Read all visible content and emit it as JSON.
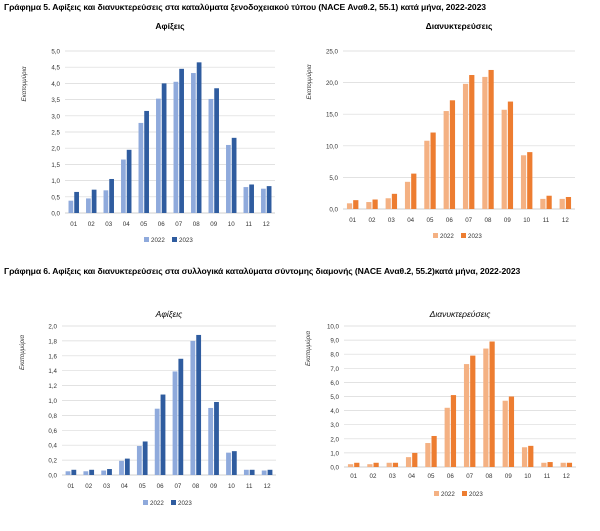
{
  "figures": [
    {
      "title": "Γράφημα 5. Αφίξεις και διανυκτερεύσεις στα καταλύματα ξενοδοχειακού τύπου (NACE Αναθ.2, 55.1) κατά μήνα, 2022-2023"
    },
    {
      "title": "Γράφημα 6. Αφίξεις και διανυκτερεύσεις στα συλλογικά καταλύματα σύντομης διαμονής (NACE Αναθ.2, 55.2)κατά μήνα, 2022-2023"
    }
  ],
  "chart_data": [
    {
      "type": "bar",
      "title": "Αφίξεις",
      "ylabel": "Εκατομμύρια",
      "categories": [
        "01",
        "02",
        "03",
        "04",
        "05",
        "06",
        "07",
        "08",
        "09",
        "10",
        "11",
        "12"
      ],
      "ylim": [
        0,
        5
      ],
      "ytick_step": 0.5,
      "ytick_decimals": 1,
      "grid": true,
      "legend": "bottom",
      "series": [
        {
          "name": "2022",
          "color": "#8faadc",
          "values": [
            0.38,
            0.45,
            0.7,
            1.65,
            2.78,
            3.53,
            4.05,
            4.32,
            3.52,
            2.1,
            0.8,
            0.75
          ]
        },
        {
          "name": "2023",
          "color": "#2f5c9f",
          "values": [
            0.65,
            0.72,
            1.05,
            1.95,
            3.15,
            4.0,
            4.45,
            4.65,
            3.85,
            2.32,
            0.88,
            0.83
          ]
        }
      ]
    },
    {
      "type": "bar",
      "title": "Διανυκτερεύσεις",
      "ylabel": "Εκατομμύρια",
      "categories": [
        "01",
        "02",
        "03",
        "04",
        "05",
        "06",
        "07",
        "08",
        "09",
        "10",
        "11",
        "12"
      ],
      "ylim": [
        0,
        25
      ],
      "ytick_step": 5,
      "ytick_decimals": 1,
      "grid": true,
      "legend": "bottom",
      "series": [
        {
          "name": "2022",
          "color": "#f4b183",
          "values": [
            0.9,
            1.1,
            1.7,
            4.3,
            10.8,
            15.5,
            19.8,
            20.9,
            15.7,
            8.5,
            1.6,
            1.6
          ]
        },
        {
          "name": "2023",
          "color": "#ed7d31",
          "values": [
            1.4,
            1.5,
            2.4,
            5.6,
            12.1,
            17.2,
            21.2,
            22.0,
            17.0,
            9.0,
            2.1,
            1.9
          ]
        }
      ]
    },
    {
      "type": "bar",
      "title": "Αφίξεις",
      "ylabel": "Εκατομμύρια",
      "categories": [
        "01",
        "02",
        "03",
        "04",
        "05",
        "06",
        "07",
        "08",
        "09",
        "10",
        "11",
        "12"
      ],
      "ylim": [
        0,
        2
      ],
      "ytick_step": 0.2,
      "ytick_decimals": 1,
      "grid": true,
      "legend": "bottom",
      "series": [
        {
          "name": "2022",
          "color": "#8faadc",
          "values": [
            0.05,
            0.05,
            0.06,
            0.19,
            0.39,
            0.89,
            1.39,
            1.8,
            0.9,
            0.3,
            0.07,
            0.06
          ]
        },
        {
          "name": "2023",
          "color": "#2f5c9f",
          "values": [
            0.07,
            0.07,
            0.08,
            0.22,
            0.45,
            1.08,
            1.56,
            1.88,
            0.98,
            0.32,
            0.07,
            0.07
          ]
        }
      ]
    },
    {
      "type": "bar",
      "title": "Διανυκτερεύσεις",
      "ylabel": "Εκατομμύρια",
      "categories": [
        "01",
        "02",
        "03",
        "04",
        "05",
        "06",
        "07",
        "08",
        "09",
        "10",
        "11",
        "12"
      ],
      "ylim": [
        0,
        10
      ],
      "ytick_step": 1,
      "ytick_decimals": 1,
      "grid": true,
      "legend": "bottom",
      "series": [
        {
          "name": "2022",
          "color": "#f4b183",
          "values": [
            0.2,
            0.2,
            0.3,
            0.7,
            1.7,
            4.2,
            7.3,
            8.4,
            4.7,
            1.4,
            0.3,
            0.3
          ]
        },
        {
          "name": "2023",
          "color": "#ed7d31",
          "values": [
            0.3,
            0.3,
            0.3,
            1.0,
            2.2,
            5.1,
            7.9,
            8.9,
            5.0,
            1.5,
            0.35,
            0.3
          ]
        }
      ]
    }
  ]
}
